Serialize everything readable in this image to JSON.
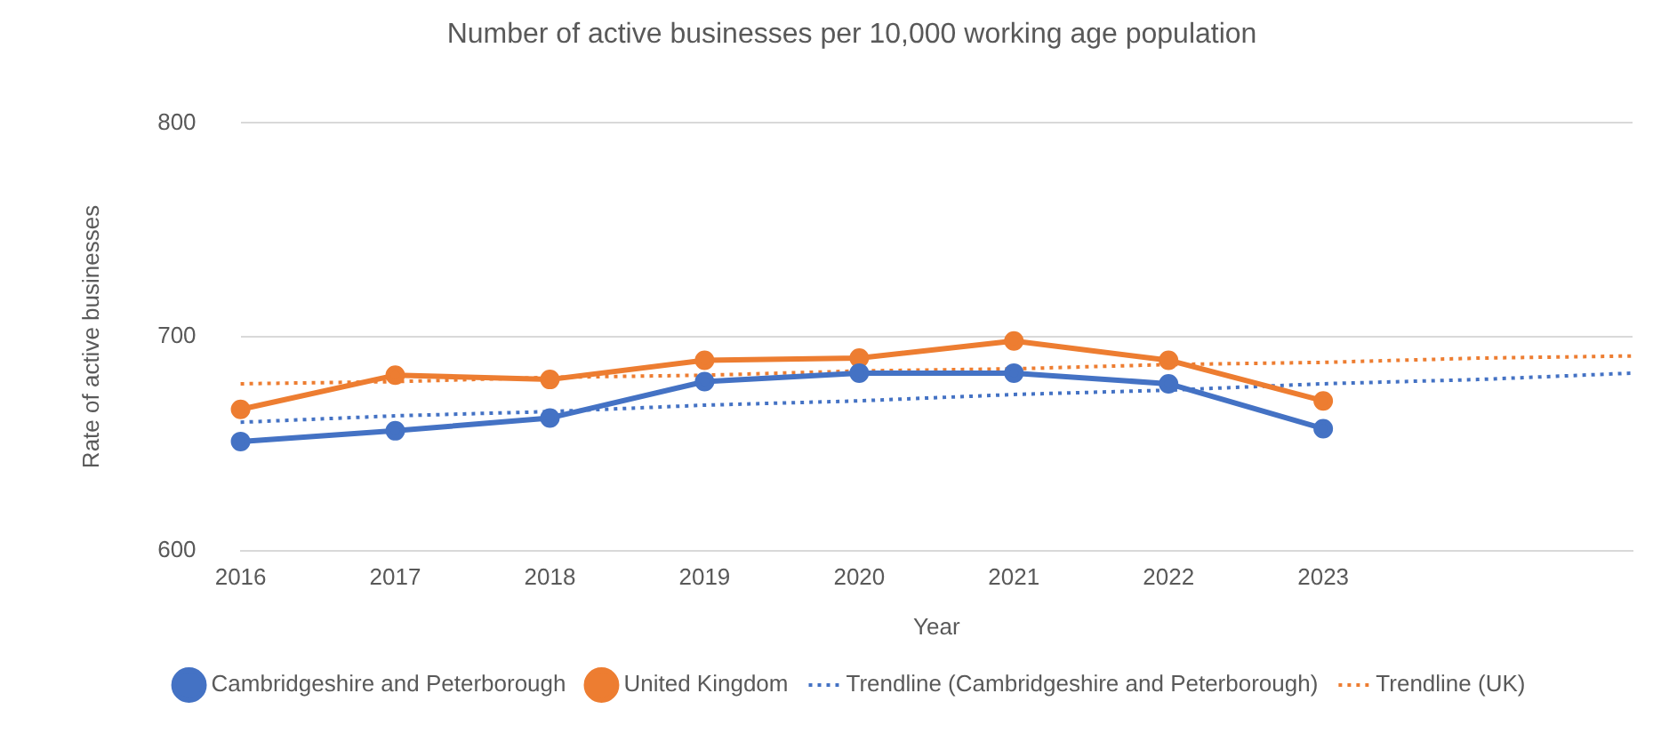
{
  "chart_data": {
    "type": "line",
    "title": "Number of active businesses per 10,000 working age population",
    "xlabel": "Year",
    "ylabel": "Rate of active businesses",
    "categories": [
      "2016",
      "2017",
      "2018",
      "2019",
      "2020",
      "2021",
      "2022",
      "2023",
      null,
      null
    ],
    "series": [
      {
        "name": "Cambridgeshire and Peterborough",
        "color": "#4472c4",
        "marker": "circle",
        "line_style": "solid",
        "values": [
          651,
          656,
          662,
          679,
          683,
          683,
          678,
          657,
          null,
          null
        ]
      },
      {
        "name": "United Kingdom",
        "color": "#ed7d31",
        "marker": "circle",
        "line_style": "solid",
        "values": [
          666,
          682,
          680,
          689,
          690,
          698,
          689,
          670,
          null,
          null
        ]
      },
      {
        "name": "Trendline (Cambridgeshire and Peterborough)",
        "color": "#4472c4",
        "marker": "none",
        "line_style": "dotted",
        "values": [
          660,
          663,
          665,
          668,
          670,
          673,
          675,
          678,
          680,
          683
        ]
      },
      {
        "name": "Trendline (UK)",
        "color": "#ed7d31",
        "marker": "none",
        "line_style": "dotted",
        "values": [
          678,
          679,
          681,
          682,
          684,
          685,
          687,
          688,
          690,
          691
        ]
      }
    ],
    "ylim": [
      600,
      800
    ],
    "yticks": [
      600,
      700,
      800
    ],
    "grid": "y",
    "legend": "bottom"
  }
}
